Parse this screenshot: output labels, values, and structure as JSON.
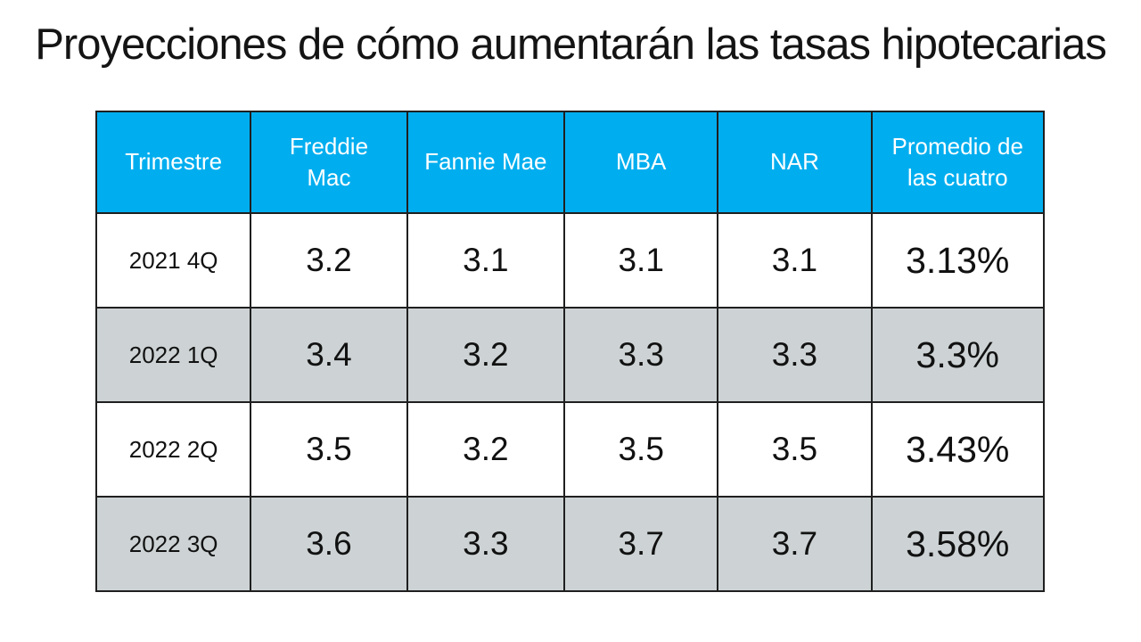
{
  "title": "Proyecciones de cómo aumentarán las tasas hipotecarias",
  "table": {
    "header": [
      "Trimestre",
      "Freddie\nMac",
      "Fannie Mae",
      "MBA",
      "NAR",
      "Promedio de\nlas cuatro"
    ],
    "rows": [
      [
        "2021 4Q",
        "3.2",
        "3.1",
        "3.1",
        "3.1",
        "3.13%"
      ],
      [
        "2022 1Q",
        "3.4",
        "3.2",
        "3.3",
        "3.3",
        "3.3%"
      ],
      [
        "2022 2Q",
        "3.5",
        "3.2",
        "3.5",
        "3.5",
        "3.43%"
      ],
      [
        "2022 3Q",
        "3.6",
        "3.3",
        "3.7",
        "3.7",
        "3.58%"
      ]
    ]
  },
  "chart_data": {
    "type": "table",
    "title": "Proyecciones de cómo aumentarán las tasas hipotecarias",
    "columns": [
      "Trimestre",
      "Freddie Mac",
      "Fannie Mae",
      "MBA",
      "NAR",
      "Promedio de las cuatro"
    ],
    "rows": [
      [
        "2021 4Q",
        3.2,
        3.1,
        3.1,
        3.1,
        "3.13%"
      ],
      [
        "2022 1Q",
        3.4,
        3.2,
        3.3,
        3.3,
        "3.3%"
      ],
      [
        "2022 2Q",
        3.5,
        3.2,
        3.5,
        3.5,
        "3.43%"
      ],
      [
        "2022 3Q",
        3.6,
        3.3,
        3.7,
        3.7,
        "3.58%"
      ]
    ]
  },
  "colors": {
    "header_bg": "#00AEEF",
    "header_text": "#FFFFFF",
    "stripe_bg": "#CDD3D4",
    "border": "#1F1F1F",
    "title_text": "#141414"
  }
}
